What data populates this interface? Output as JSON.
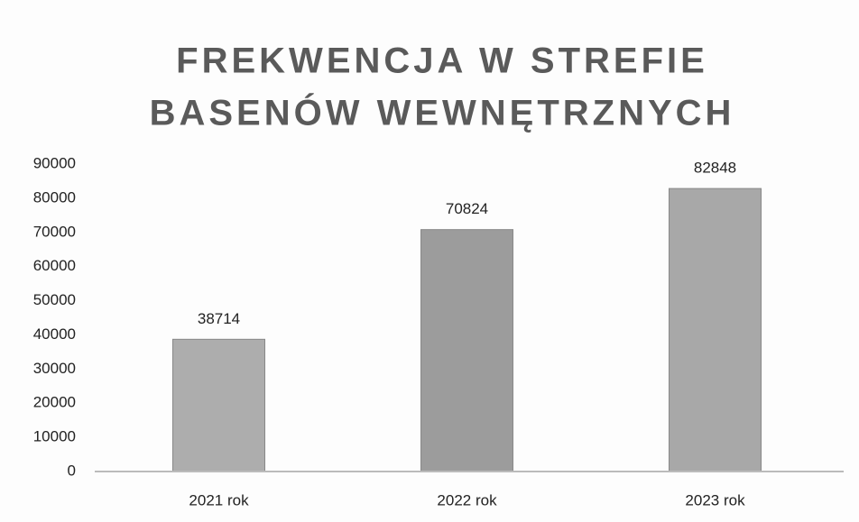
{
  "chart_data": {
    "type": "bar",
    "title": [
      "FREKWENCJA W STREFIE",
      "BASENÓW WEWNĘTRZNYCH"
    ],
    "categories": [
      "2021 rok",
      "2022 rok",
      "2023 rok"
    ],
    "values": [
      38714,
      70824,
      82848
    ],
    "colors": [
      "#adadad",
      "#9c9c9c",
      "#a8a8a8"
    ],
    "ylim": [
      0,
      90000
    ],
    "yticks": [
      0,
      10000,
      20000,
      30000,
      40000,
      50000,
      60000,
      70000,
      80000,
      90000
    ],
    "grid": false
  }
}
